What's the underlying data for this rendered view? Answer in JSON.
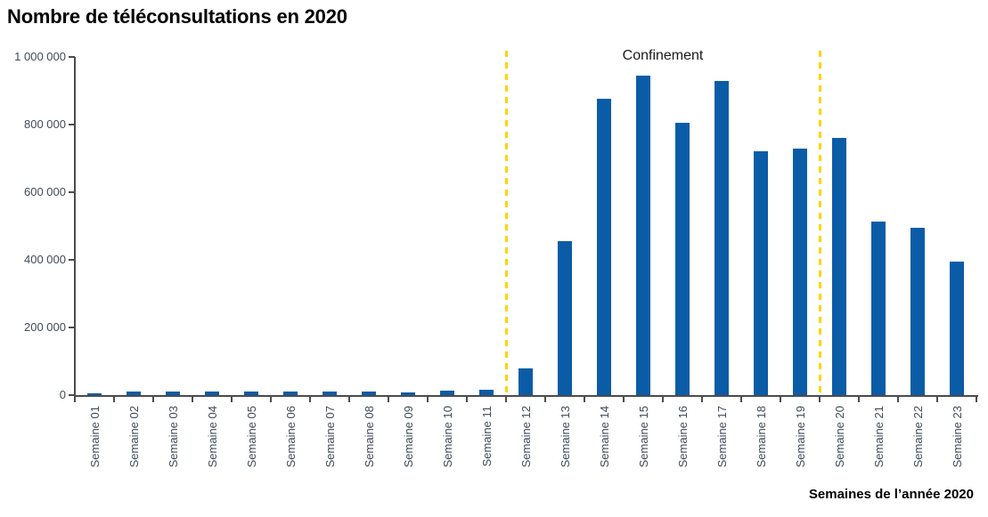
{
  "header": {
    "title": "Nombre de téléconsultations en 2020"
  },
  "chart_data": {
    "type": "bar",
    "title": "Nombre de téléconsultations en 2020",
    "categories": [
      "Semaine 01",
      "Semaine 02",
      "Semaine 03",
      "Semaine 04",
      "Semaine 05",
      "Semaine 06",
      "Semaine 07",
      "Semaine 08",
      "Semaine 09",
      "Semaine 10",
      "Semaine 11",
      "Semaine 12",
      "Semaine 13",
      "Semaine 14",
      "Semaine 15",
      "Semaine 16",
      "Semaine 17",
      "Semaine 18",
      "Semaine 19",
      "Semaine 20",
      "Semaine 21",
      "Semaine 22",
      "Semaine 23"
    ],
    "values": [
      4000,
      10000,
      10000,
      10000,
      10000,
      10000,
      10000,
      9500,
      9000,
      13000,
      17000,
      78000,
      455000,
      875000,
      945000,
      805000,
      930000,
      720000,
      730000,
      760000,
      512000,
      495000,
      396000
    ],
    "xlabel": "Semaines de l’année 2020",
    "ylabel": "",
    "ylim": [
      0,
      1000000
    ],
    "yticks": [
      0,
      200000,
      400000,
      600000,
      800000,
      1000000
    ],
    "ytick_labels": [
      "0",
      "200 000",
      "400 000",
      "600 000",
      "800 000",
      "1 000 000"
    ],
    "grid": false,
    "legend": "none",
    "bar_color": "#0b5ca7",
    "axis_color": "#4c4c4c",
    "annotation": {
      "label": "Confinement",
      "vlines_after_categories": [
        "Semaine 11",
        "Semaine 19"
      ],
      "vline_color": "#ffd400",
      "vline_style": "dashed"
    }
  }
}
